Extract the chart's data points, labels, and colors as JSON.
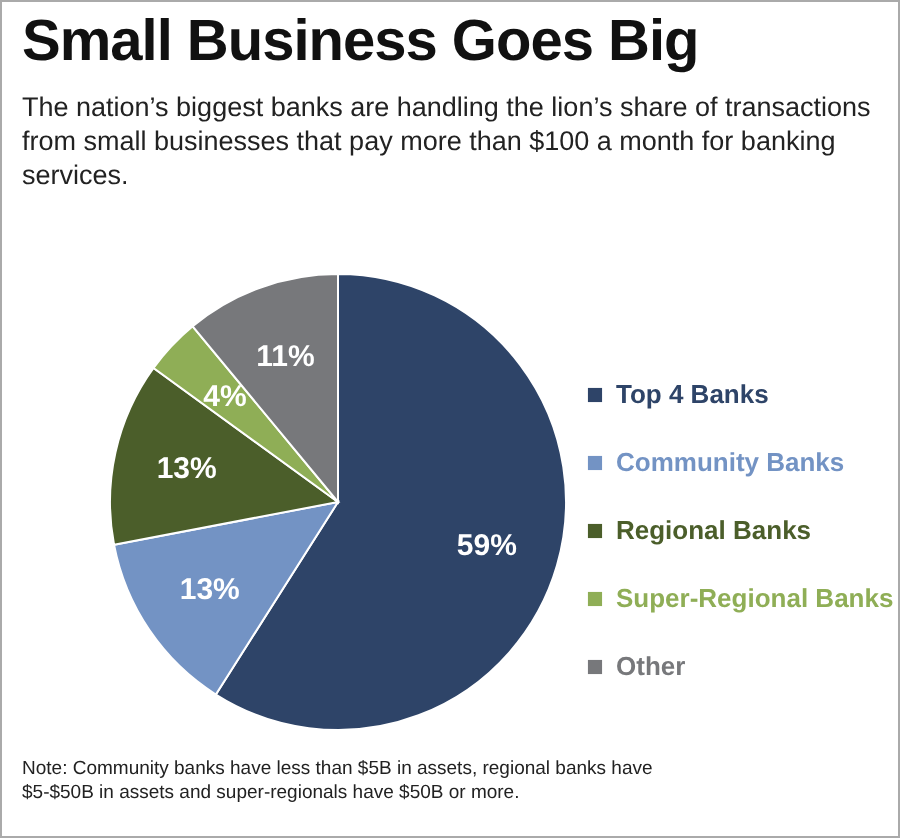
{
  "chart_data": {
    "type": "pie",
    "title": "Small Business Goes Big",
    "subtitle": "The nation’s biggest banks are handling the lion’s share of transactions from small businesses that pay more than $100 a month for banking services.",
    "categories": [
      "Top 4 Banks",
      "Community Banks",
      "Regional Banks",
      "Super-Regional Banks",
      "Other"
    ],
    "values": [
      59,
      13,
      13,
      4,
      11
    ],
    "value_labels": [
      "59%",
      "13%",
      "13%",
      "4%",
      "11%"
    ],
    "colors": [
      "#2e4468",
      "#7393c4",
      "#4b5e2a",
      "#8fae56",
      "#77787b"
    ],
    "legend": "right",
    "annotations": [
      "Note: Community banks have less than $5B in assets, regional banks have $5-$50B in assets and super-regionals have $50B or more."
    ]
  }
}
